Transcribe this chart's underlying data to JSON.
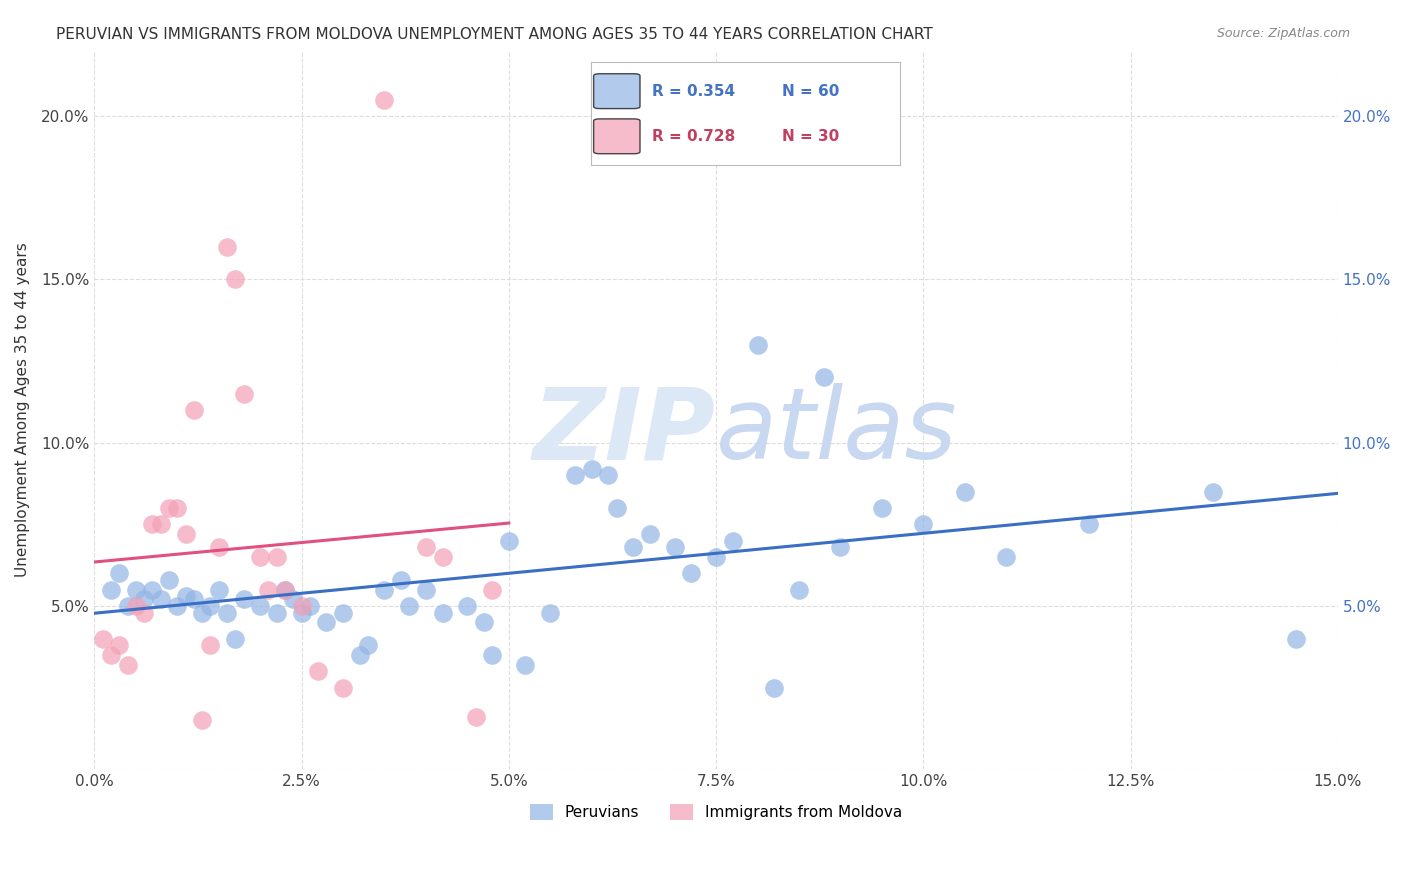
{
  "title": "PERUVIAN VS IMMIGRANTS FROM MOLDOVA UNEMPLOYMENT AMONG AGES 35 TO 44 YEARS CORRELATION CHART",
  "source": "Source: ZipAtlas.com",
  "ylabel": "Unemployment Among Ages 35 to 44 years",
  "legend_blue_r": "R = 0.354",
  "legend_blue_n": "N = 60",
  "legend_pink_r": "R = 0.728",
  "legend_pink_n": "N = 30",
  "blue_color": "#92b4e3",
  "pink_color": "#f4a0b5",
  "blue_line_color": "#3a6fc4",
  "pink_line_color": "#e05080",
  "xlim": [
    0.0,
    0.15
  ],
  "ylim": [
    0.0,
    0.22
  ],
  "blue_scatter": [
    [
      0.002,
      0.055
    ],
    [
      0.003,
      0.06
    ],
    [
      0.004,
      0.05
    ],
    [
      0.005,
      0.055
    ],
    [
      0.006,
      0.052
    ],
    [
      0.007,
      0.055
    ],
    [
      0.008,
      0.052
    ],
    [
      0.009,
      0.058
    ],
    [
      0.01,
      0.05
    ],
    [
      0.011,
      0.053
    ],
    [
      0.012,
      0.052
    ],
    [
      0.013,
      0.048
    ],
    [
      0.014,
      0.05
    ],
    [
      0.015,
      0.055
    ],
    [
      0.016,
      0.048
    ],
    [
      0.017,
      0.04
    ],
    [
      0.018,
      0.052
    ],
    [
      0.02,
      0.05
    ],
    [
      0.022,
      0.048
    ],
    [
      0.023,
      0.055
    ],
    [
      0.024,
      0.052
    ],
    [
      0.025,
      0.048
    ],
    [
      0.026,
      0.05
    ],
    [
      0.028,
      0.045
    ],
    [
      0.03,
      0.048
    ],
    [
      0.032,
      0.035
    ],
    [
      0.033,
      0.038
    ],
    [
      0.035,
      0.055
    ],
    [
      0.037,
      0.058
    ],
    [
      0.038,
      0.05
    ],
    [
      0.04,
      0.055
    ],
    [
      0.042,
      0.048
    ],
    [
      0.045,
      0.05
    ],
    [
      0.047,
      0.045
    ],
    [
      0.048,
      0.035
    ],
    [
      0.05,
      0.07
    ],
    [
      0.052,
      0.032
    ],
    [
      0.055,
      0.048
    ],
    [
      0.058,
      0.09
    ],
    [
      0.06,
      0.092
    ],
    [
      0.062,
      0.09
    ],
    [
      0.063,
      0.08
    ],
    [
      0.065,
      0.068
    ],
    [
      0.067,
      0.072
    ],
    [
      0.07,
      0.068
    ],
    [
      0.072,
      0.06
    ],
    [
      0.075,
      0.065
    ],
    [
      0.077,
      0.07
    ],
    [
      0.08,
      0.13
    ],
    [
      0.082,
      0.025
    ],
    [
      0.085,
      0.055
    ],
    [
      0.088,
      0.12
    ],
    [
      0.09,
      0.068
    ],
    [
      0.095,
      0.08
    ],
    [
      0.1,
      0.075
    ],
    [
      0.105,
      0.085
    ],
    [
      0.11,
      0.065
    ],
    [
      0.12,
      0.075
    ],
    [
      0.135,
      0.085
    ],
    [
      0.145,
      0.04
    ]
  ],
  "pink_scatter": [
    [
      0.001,
      0.04
    ],
    [
      0.002,
      0.035
    ],
    [
      0.003,
      0.038
    ],
    [
      0.004,
      0.032
    ],
    [
      0.005,
      0.05
    ],
    [
      0.006,
      0.048
    ],
    [
      0.007,
      0.075
    ],
    [
      0.008,
      0.075
    ],
    [
      0.009,
      0.08
    ],
    [
      0.01,
      0.08
    ],
    [
      0.011,
      0.072
    ],
    [
      0.012,
      0.11
    ],
    [
      0.013,
      0.015
    ],
    [
      0.014,
      0.038
    ],
    [
      0.015,
      0.068
    ],
    [
      0.016,
      0.16
    ],
    [
      0.017,
      0.15
    ],
    [
      0.018,
      0.115
    ],
    [
      0.02,
      0.065
    ],
    [
      0.021,
      0.055
    ],
    [
      0.022,
      0.065
    ],
    [
      0.023,
      0.055
    ],
    [
      0.025,
      0.05
    ],
    [
      0.027,
      0.03
    ],
    [
      0.03,
      0.025
    ],
    [
      0.035,
      0.205
    ],
    [
      0.04,
      0.068
    ],
    [
      0.042,
      0.065
    ],
    [
      0.046,
      0.016
    ],
    [
      0.048,
      0.055
    ]
  ],
  "xtick_labels": [
    "0.0%",
    "2.5%",
    "5.0%",
    "7.5%",
    "10.0%",
    "12.5%",
    "15.0%"
  ],
  "xtick_values": [
    0.0,
    0.025,
    0.05,
    0.075,
    0.1,
    0.125,
    0.15
  ],
  "ytick_values": [
    0.0,
    0.05,
    0.1,
    0.15,
    0.2
  ],
  "ytick_labels": [
    "",
    "5.0%",
    "10.0%",
    "15.0%",
    "20.0%"
  ],
  "background_color": "#ffffff",
  "grid_color": "#dddddd"
}
